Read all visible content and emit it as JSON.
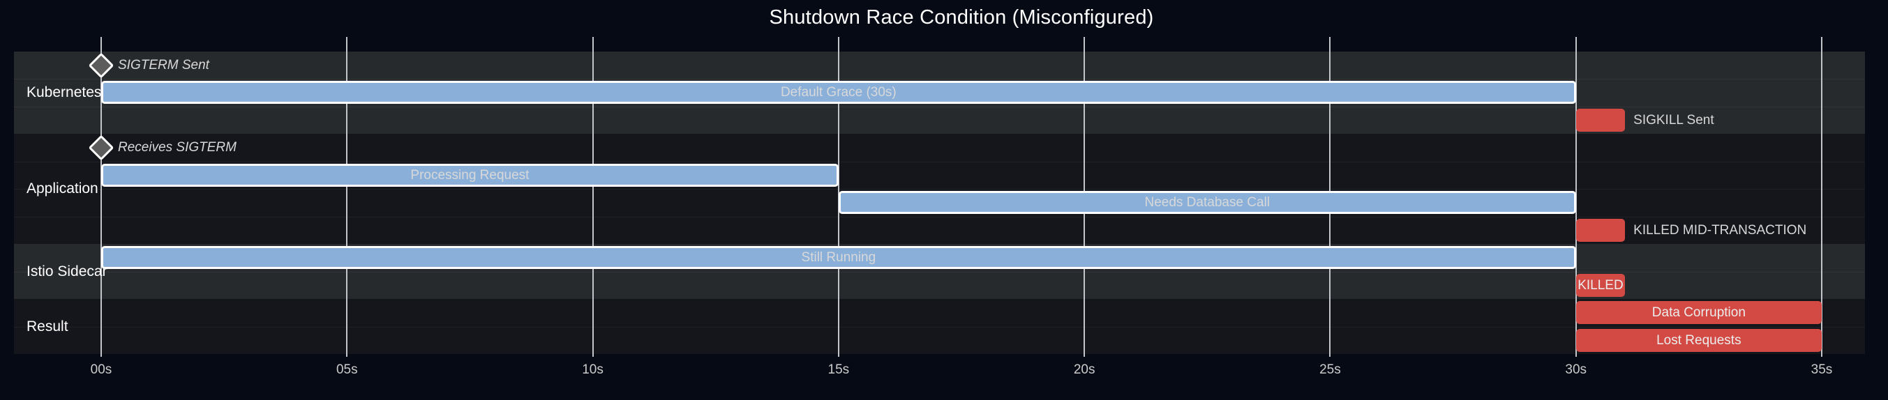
{
  "title": "Shutdown Race Condition (Misconfigured)",
  "colors": {
    "page_bg": "#060a14",
    "band_light": "#272a2d",
    "band_dark": "#14161c",
    "row_separator": "rgba(255,255,255,0.05)",
    "grid_line": "#c2c5c9",
    "tick_text": "#cccccc",
    "section_label_text": "#ffffff",
    "title_text": "#ffffff",
    "task_fill": "#8ab0da",
    "task_border": "#ffffff",
    "task_text": "#d8d8d8",
    "critical_fill": "#d34a44",
    "critical_text": "#ececec",
    "milestone_fill": "#5c5c5c",
    "milestone_border": "#ffffff",
    "milestone_text": "#d8d8d8",
    "side_label_text": "#d8d8d8"
  },
  "chart_data": {
    "type": "gantt",
    "title": "Shutdown Race Condition (Misconfigured)",
    "x_axis": {
      "unit": "seconds",
      "min": 0,
      "max": 35,
      "tick_interval": 5,
      "tick_labels": [
        "00s",
        "05s",
        "10s",
        "15s",
        "20s",
        "25s",
        "30s",
        "35s"
      ]
    },
    "grid": "vertical-lines-every-5s",
    "sections": [
      {
        "name": "Kubernetes",
        "tasks": [
          {
            "label": "SIGTERM Sent",
            "kind": "milestone",
            "start": 0,
            "end": 0,
            "label_position": "right"
          },
          {
            "label": "Default Grace (30s)",
            "kind": "task",
            "start": 0,
            "end": 30,
            "label_position": "inside"
          },
          {
            "label": "SIGKILL Sent",
            "kind": "critical",
            "start": 30,
            "end": 31,
            "label_position": "right"
          }
        ]
      },
      {
        "name": "Application",
        "tasks": [
          {
            "label": "Receives SIGTERM",
            "kind": "milestone",
            "start": 0,
            "end": 0,
            "label_position": "right"
          },
          {
            "label": "Processing Request",
            "kind": "task",
            "start": 0,
            "end": 15,
            "label_position": "inside"
          },
          {
            "label": "Needs Database Call",
            "kind": "task",
            "start": 15,
            "end": 30,
            "label_position": "inside"
          },
          {
            "label": "KILLED MID-TRANSACTION",
            "kind": "critical",
            "start": 30,
            "end": 31,
            "label_position": "right"
          }
        ]
      },
      {
        "name": "Istio Sidecar",
        "tasks": [
          {
            "label": "Still Running",
            "kind": "task",
            "start": 0,
            "end": 30,
            "label_position": "inside"
          },
          {
            "label": "KILLED",
            "kind": "critical",
            "start": 30,
            "end": 31,
            "label_position": "inside"
          }
        ]
      },
      {
        "name": "Result",
        "tasks": [
          {
            "label": "Data Corruption",
            "kind": "critical",
            "start": 30,
            "end": 35,
            "label_position": "inside"
          },
          {
            "label": "Lost Requests",
            "kind": "critical",
            "start": 30,
            "end": 35,
            "label_position": "inside"
          }
        ]
      }
    ]
  }
}
